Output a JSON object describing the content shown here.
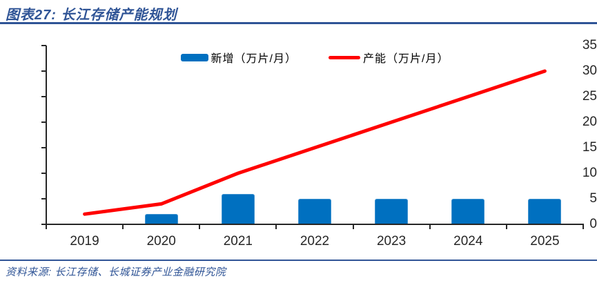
{
  "header": {
    "title": "图表27: 长江存储产能规划"
  },
  "footer": {
    "source": "资料来源: 长江存储、长城证券产业金融研究院"
  },
  "colors": {
    "accent_blue": "#2F5496",
    "bar_blue": "#0070C0",
    "line_red": "#FF0000",
    "axis_dark": "#262626"
  },
  "chart_data": {
    "type": "combo",
    "title": "长江存储产能规划",
    "categories": [
      "2019",
      "2020",
      "2021",
      "2022",
      "2023",
      "2024",
      "2025"
    ],
    "series": [
      {
        "name": "新增（万片/月）",
        "type": "bar",
        "color": "#0070C0",
        "values": [
          null,
          2,
          6,
          5,
          5,
          5,
          5
        ]
      },
      {
        "name": "产能（万片/月）",
        "type": "line",
        "color": "#FF0000",
        "values": [
          2,
          4,
          10,
          15,
          20,
          25,
          30
        ]
      }
    ],
    "xlabel": "",
    "ylabel": "",
    "ylim": [
      0,
      35
    ],
    "yticks": [
      0,
      5,
      10,
      15,
      20,
      25,
      30,
      35
    ],
    "grid": false,
    "legend_position": "top-center"
  }
}
